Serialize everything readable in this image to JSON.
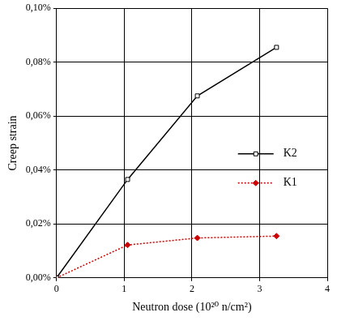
{
  "chart_data": {
    "type": "line",
    "x_label": "Neutron dose (10²⁰ n/cm²)",
    "y_label": "Creep strain",
    "series": [
      {
        "name": "K2",
        "color": "#000000",
        "marker": "open_square",
        "line_style": "solid",
        "x": [
          0,
          1.05,
          2.08,
          3.25
        ],
        "values": [
          0,
          0.0365,
          0.0675,
          0.0855
        ]
      },
      {
        "name": "K1",
        "color": "#cc0000",
        "marker": "diamond",
        "line_style": "dotted",
        "x": [
          0,
          1.05,
          2.08,
          3.25
        ],
        "values": [
          0,
          0.0122,
          0.0148,
          0.0155
        ]
      }
    ],
    "xlim": [
      0,
      4
    ],
    "xticks": [
      0,
      1,
      2,
      3,
      4
    ],
    "ylim": [
      0,
      0.1
    ],
    "yticks": [
      {
        "value": 0,
        "label": "0,00%"
      },
      {
        "value": 0.02,
        "label": "0,02%"
      },
      {
        "value": 0.04,
        "label": "0,04%"
      },
      {
        "value": 0.06,
        "label": "0,06%"
      },
      {
        "value": 0.08,
        "label": "0,08%"
      },
      {
        "value": 0.1,
        "label": "0,10%"
      }
    ],
    "grid": true,
    "legend": "right"
  }
}
